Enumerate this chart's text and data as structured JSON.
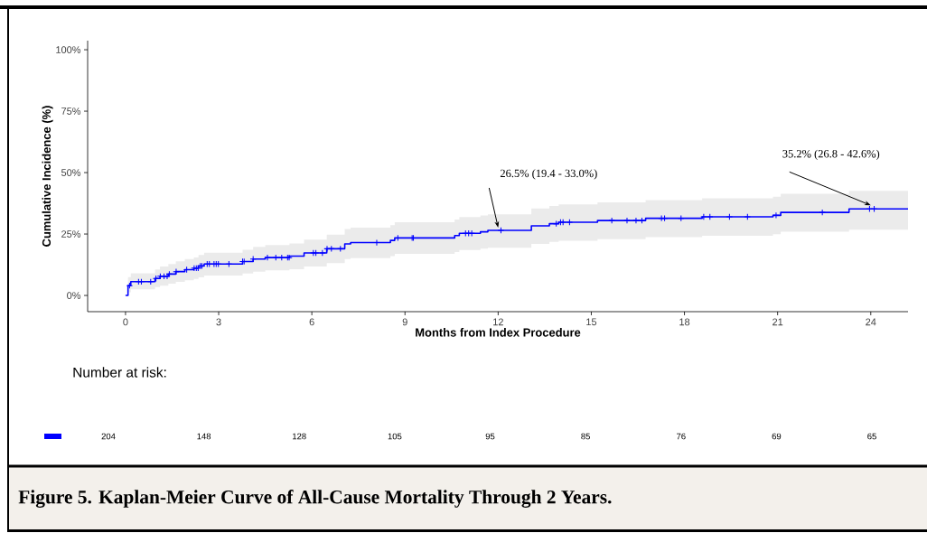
{
  "chart_data": {
    "type": "step",
    "title": "Figure 5. Kaplan-Meier Curve of All-Cause Mortality Through 2 Years.",
    "xlabel": "Months from Index Procedure",
    "ylabel": "Cumulative Incidence (%)",
    "xlim": [
      -1.22,
      25.2
    ],
    "ylim": [
      -6.6,
      103.7
    ],
    "xticks": [
      0,
      3,
      6,
      9,
      12,
      15,
      18,
      21,
      24
    ],
    "yticks": [
      {
        "value": 0,
        "label": "0%"
      },
      {
        "value": 25,
        "label": "25%"
      },
      {
        "value": 50,
        "label": "50%"
      },
      {
        "value": 75,
        "label": "75%"
      },
      {
        "value": 100,
        "label": "100%"
      }
    ],
    "grid": false,
    "legend": false,
    "series": [
      {
        "color": "#0000ff",
        "x": [
          0,
          0.08,
          0.17,
          0.95,
          1.11,
          1.38,
          1.62,
          1.91,
          2.2,
          2.35,
          2.53,
          3.77,
          4.11,
          4.5,
          5.28,
          5.75,
          6.48,
          7.06,
          7.25,
          8.53,
          8.67,
          10.6,
          10.75,
          11.43,
          11.67,
          13.07,
          13.65,
          13.95,
          15.2,
          16.75,
          18.57,
          20.85,
          21.1,
          23.3,
          25.2
        ],
        "values": [
          0,
          4.0,
          5.6,
          6.9,
          7.8,
          8.7,
          9.7,
          10.5,
          11.1,
          12.0,
          12.8,
          13.8,
          14.8,
          15.4,
          16.0,
          17.3,
          19.0,
          21.0,
          21.5,
          22.4,
          23.4,
          24.4,
          25.3,
          25.9,
          26.5,
          28.3,
          29.2,
          29.8,
          30.5,
          31.4,
          32.0,
          32.6,
          33.8,
          35.2,
          35.2
        ],
        "lower": [
          0,
          1.3,
          2.5,
          3.4,
          4.0,
          4.8,
          5.5,
          6.2,
          6.7,
          7.4,
          8.1,
          8.9,
          9.7,
          10.2,
          10.7,
          11.8,
          13.2,
          14.8,
          15.2,
          16.0,
          16.9,
          17.7,
          18.5,
          19.0,
          19.4,
          21.0,
          21.8,
          22.3,
          22.9,
          23.7,
          24.3,
          24.9,
          25.9,
          26.8,
          26.8
        ],
        "upper": [
          0,
          7.5,
          9.0,
          10.6,
          11.8,
          12.8,
          13.9,
          14.8,
          15.5,
          16.5,
          17.4,
          18.6,
          19.8,
          20.5,
          21.2,
          22.7,
          24.7,
          27.0,
          27.6,
          28.6,
          29.8,
          30.9,
          31.9,
          32.6,
          33.0,
          35.4,
          36.4,
          37.1,
          37.9,
          38.8,
          39.5,
          40.2,
          41.4,
          42.6,
          42.6
        ]
      },
      {
        "type": "scatter",
        "marker": "cross",
        "color": "#0000ff",
        "x": [
          0.13,
          0.42,
          0.51,
          0.81,
          0.98,
          1.12,
          1.24,
          1.34,
          1.41,
          1.63,
          1.97,
          2.21,
          2.28,
          2.34,
          2.41,
          2.46,
          2.63,
          2.7,
          2.85,
          2.92,
          2.99,
          3.33,
          3.77,
          3.82,
          4.11,
          4.57,
          4.84,
          5.03,
          5.22,
          5.27,
          6.05,
          6.13,
          6.34,
          6.49,
          6.63,
          6.92,
          8.09,
          8.77,
          9.23,
          9.27,
          10.95,
          11.05,
          11.15,
          12.09,
          13.87,
          14.01,
          14.09,
          14.3,
          15.66,
          16.15,
          16.44,
          16.63,
          17.26,
          17.36,
          17.89,
          18.62,
          18.82,
          19.45,
          20.03,
          20.95,
          22.44,
          23.96,
          24.11
        ],
        "values": [
          4.0,
          5.6,
          5.6,
          5.6,
          6.9,
          7.8,
          7.8,
          7.8,
          8.7,
          9.7,
          10.5,
          11.1,
          11.1,
          11.1,
          12.0,
          12.0,
          12.8,
          12.8,
          12.8,
          12.8,
          12.8,
          12.8,
          13.8,
          13.8,
          14.8,
          15.4,
          15.4,
          15.4,
          15.4,
          15.4,
          17.3,
          17.3,
          17.3,
          19.0,
          19.0,
          19.0,
          21.5,
          23.4,
          23.4,
          23.4,
          25.3,
          25.3,
          25.3,
          26.5,
          29.2,
          29.8,
          29.8,
          29.8,
          30.5,
          30.5,
          30.5,
          30.5,
          31.4,
          31.4,
          31.4,
          32.0,
          32.0,
          32.0,
          32.0,
          32.6,
          33.8,
          35.2,
          35.2
        ]
      }
    ],
    "annotations": [
      {
        "text": "26.5% (19.4 - 33.0%)",
        "x": 12,
        "y": 26.5
      },
      {
        "text": "35.2% (26.8 - 42.6%)",
        "x": 24,
        "y": 35.2
      },
      "Number at risk:",
      "204",
      "148",
      "128",
      "105",
      "95",
      "85",
      "76",
      "69",
      "65"
    ]
  }
}
